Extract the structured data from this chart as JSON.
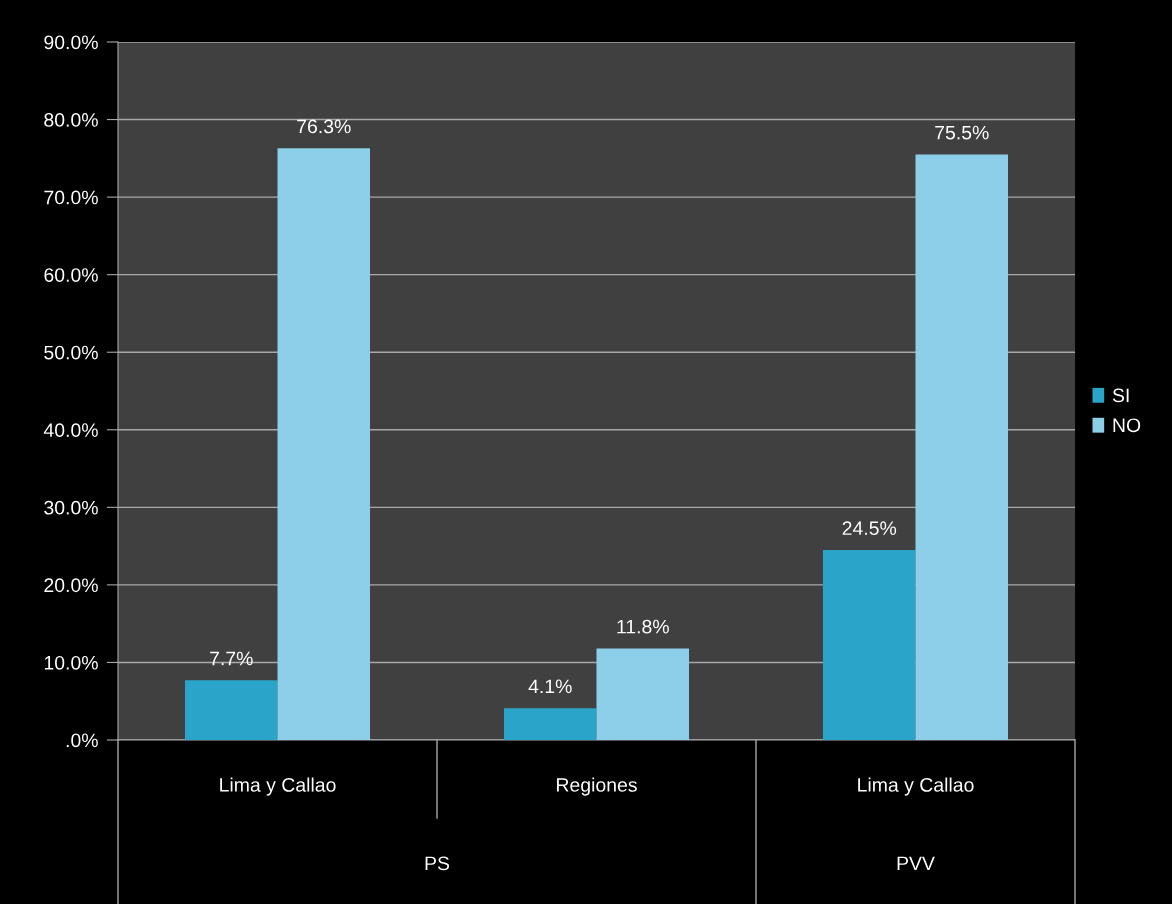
{
  "chart_data": {
    "type": "bar",
    "categories": [
      "Lima y Callao",
      "Regiones",
      "Lima y Callao"
    ],
    "series": [
      {
        "name": "SI",
        "color": "#2aa5c9",
        "values": [
          7.7,
          4.1,
          24.5
        ],
        "value_labels": [
          "7.7%",
          "4.1%",
          "24.5%"
        ]
      },
      {
        "name": "NO",
        "color": "#8dcfe8",
        "values": [
          76.3,
          11.8,
          75.5
        ],
        "value_labels": [
          "76.3%",
          "11.8%",
          "75.5%"
        ]
      }
    ],
    "ylim": [
      0,
      90
    ],
    "yticks": [
      {
        "value": 0,
        "label": ".0%"
      },
      {
        "value": 10,
        "label": "10.0%"
      },
      {
        "value": 20,
        "label": "20.0%"
      },
      {
        "value": 30,
        "label": "30.0%"
      },
      {
        "value": 40,
        "label": "40.0%"
      },
      {
        "value": 50,
        "label": "50.0%"
      },
      {
        "value": 60,
        "label": "60.0%"
      },
      {
        "value": 70,
        "label": "70.0%"
      },
      {
        "value": 80,
        "label": "80.0%"
      },
      {
        "value": 90,
        "label": "90.0%"
      }
    ],
    "grid": "y",
    "legend": "right",
    "annotations": [
      "PS",
      "PVV"
    ]
  }
}
